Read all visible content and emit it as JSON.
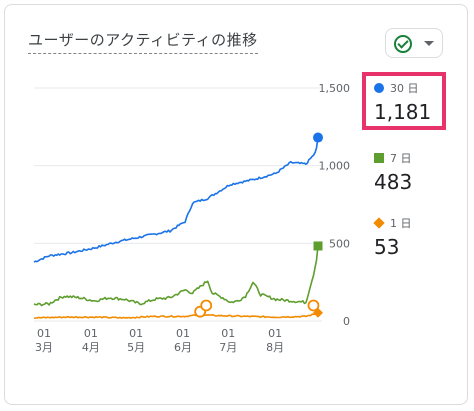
{
  "title": "ユーザーのアクティビティの推移",
  "legend": [
    {
      "label": "30 日",
      "value": "1,181",
      "color": "#1a73e8",
      "marker": "circle"
    },
    {
      "label": "7 日",
      "value": "483",
      "color": "#5e9e2f",
      "marker": "square"
    },
    {
      "label": "1 日",
      "value": "53",
      "color": "#f28b00",
      "marker": "diamond"
    }
  ],
  "icons": {
    "status": "check-circle-icon",
    "dropdown": "caret-down-icon"
  },
  "chart_data": {
    "type": "line",
    "ylim": [
      0,
      1500
    ],
    "yticks": [
      "1,500",
      "1,000",
      "500",
      "0"
    ],
    "y_tick_values": [
      1500,
      1000,
      500,
      0
    ],
    "xticks": [
      {
        "day": "01",
        "month": "3月",
        "index": 0
      },
      {
        "day": "01",
        "month": "4月",
        "index": 31
      },
      {
        "day": "01",
        "month": "5月",
        "index": 61
      },
      {
        "day": "01",
        "month": "6月",
        "index": 92
      },
      {
        "day": "01",
        "month": "7月",
        "index": 122
      },
      {
        "day": "01",
        "month": "8月",
        "index": 153
      }
    ],
    "point_count": 189,
    "series": [
      {
        "name": "30 日",
        "color": "#1a73e8",
        "end_value": 1181,
        "anchors": [
          [
            0,
            380
          ],
          [
            10,
            420
          ],
          [
            25,
            440
          ],
          [
            40,
            470
          ],
          [
            55,
            510
          ],
          [
            70,
            540
          ],
          [
            90,
            580
          ],
          [
            100,
            640
          ],
          [
            105,
            760
          ],
          [
            115,
            790
          ],
          [
            130,
            880
          ],
          [
            145,
            910
          ],
          [
            160,
            950
          ],
          [
            170,
            1020
          ],
          [
            180,
            1010
          ],
          [
            186,
            1080
          ],
          [
            189,
            1181
          ]
        ]
      },
      {
        "name": "7 日",
        "color": "#5e9e2f",
        "end_value": 483,
        "anchors": [
          [
            0,
            105
          ],
          [
            10,
            110
          ],
          [
            15,
            140
          ],
          [
            20,
            160
          ],
          [
            30,
            150
          ],
          [
            40,
            130
          ],
          [
            50,
            150
          ],
          [
            60,
            140
          ],
          [
            70,
            110
          ],
          [
            80,
            140
          ],
          [
            90,
            150
          ],
          [
            100,
            200
          ],
          [
            105,
            180
          ],
          [
            110,
            220
          ],
          [
            115,
            260
          ],
          [
            118,
            180
          ],
          [
            125,
            150
          ],
          [
            130,
            120
          ],
          [
            135,
            130
          ],
          [
            140,
            160
          ],
          [
            145,
            250
          ],
          [
            150,
            170
          ],
          [
            160,
            140
          ],
          [
            170,
            130
          ],
          [
            180,
            120
          ],
          [
            185,
            300
          ],
          [
            189,
            483
          ]
        ]
      },
      {
        "name": "1 日",
        "color": "#f28b00",
        "end_value": 53,
        "anchors": [
          [
            0,
            20
          ],
          [
            20,
            25
          ],
          [
            40,
            25
          ],
          [
            60,
            20
          ],
          [
            80,
            30
          ],
          [
            100,
            30
          ],
          [
            110,
            40
          ],
          [
            120,
            35
          ],
          [
            140,
            30
          ],
          [
            160,
            25
          ],
          [
            180,
            30
          ],
          [
            189,
            53
          ]
        ]
      }
    ],
    "annotations": [
      {
        "x_index": 110,
        "value": 60,
        "color": "#f28b00"
      },
      {
        "x_index": 114,
        "value": 100,
        "color": "#f28b00"
      },
      {
        "x_index": 185,
        "value": 100,
        "color": "#f28b00"
      }
    ]
  }
}
